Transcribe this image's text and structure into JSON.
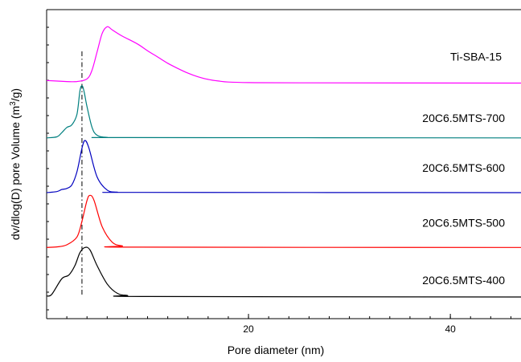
{
  "chart_data": {
    "type": "line",
    "xlabel": "Pore diameter (nm)",
    "ylabel_prefix": "dv/dlog(D) pore Volume (m",
    "ylabel_sup": "3",
    "ylabel_suffix": "/g)",
    "xlim": [
      0,
      47
    ],
    "x_ticks": [
      20,
      40
    ],
    "x_minor_step": 2,
    "reference_line_x": 3.5,
    "legend": "none",
    "grid": false,
    "series": [
      {
        "name": "Ti-SBA-15",
        "color": "#ff00ff",
        "offset": 4.1,
        "points": [
          [
            0,
            0.05
          ],
          [
            2,
            0.03
          ],
          [
            3,
            0.03
          ],
          [
            4,
            0.08
          ],
          [
            4.5,
            0.25
          ],
          [
            5,
            0.6
          ],
          [
            5.5,
            0.95
          ],
          [
            6,
            1.08
          ],
          [
            6.5,
            1.02
          ],
          [
            7.5,
            0.9
          ],
          [
            9,
            0.75
          ],
          [
            10,
            0.62
          ],
          [
            11,
            0.5
          ],
          [
            12,
            0.38
          ],
          [
            13,
            0.28
          ],
          [
            14,
            0.19
          ],
          [
            15,
            0.12
          ],
          [
            16,
            0.07
          ],
          [
            17,
            0.04
          ],
          [
            18,
            0.02
          ],
          [
            20,
            0.01
          ],
          [
            25,
            0.005
          ],
          [
            47,
            0
          ]
        ]
      },
      {
        "name": "20C6.5MTS-700",
        "color": "#007f7f",
        "offset": 3.05,
        "points": [
          [
            0,
            0
          ],
          [
            1,
            0.02
          ],
          [
            1.5,
            0.1
          ],
          [
            2,
            0.2
          ],
          [
            2.5,
            0.25
          ],
          [
            3,
            0.45
          ],
          [
            3.3,
            0.9
          ],
          [
            3.5,
            1.0
          ],
          [
            3.7,
            0.9
          ],
          [
            4,
            0.6
          ],
          [
            4.5,
            0.2
          ],
          [
            5,
            0.05
          ],
          [
            6,
            0.01
          ],
          [
            8,
            0.005
          ],
          [
            47,
            0
          ]
        ]
      },
      {
        "name": "20C6.5MTS-600",
        "color": "#0000bf",
        "offset": 2.0,
        "points": [
          [
            0,
            0
          ],
          [
            1,
            0.02
          ],
          [
            1.5,
            0.06
          ],
          [
            2,
            0.08
          ],
          [
            2.5,
            0.15
          ],
          [
            3,
            0.4
          ],
          [
            3.5,
            0.85
          ],
          [
            3.8,
            1.0
          ],
          [
            4.2,
            0.85
          ],
          [
            5,
            0.3
          ],
          [
            6,
            0.05
          ],
          [
            7,
            0.01
          ],
          [
            9,
            0.005
          ],
          [
            47,
            0
          ]
        ]
      },
      {
        "name": "20C6.5MTS-500",
        "color": "#ff0000",
        "offset": 0.95,
        "points": [
          [
            0,
            0
          ],
          [
            1,
            0.01
          ],
          [
            2,
            0.05
          ],
          [
            3,
            0.2
          ],
          [
            3.5,
            0.5
          ],
          [
            4,
            0.9
          ],
          [
            4.3,
            1.0
          ],
          [
            4.7,
            0.9
          ],
          [
            5.5,
            0.4
          ],
          [
            6.5,
            0.1
          ],
          [
            7.5,
            0.03
          ],
          [
            9,
            0.005
          ],
          [
            47,
            0
          ]
        ]
      },
      {
        "name": "20C6.5MTS-400",
        "color": "#000000",
        "offset": 0.0,
        "points": [
          [
            0,
            0.02
          ],
          [
            0.5,
            0.05
          ],
          [
            1.5,
            0.35
          ],
          [
            2.2,
            0.42
          ],
          [
            2.8,
            0.6
          ],
          [
            3.3,
            0.85
          ],
          [
            3.8,
            0.95
          ],
          [
            4.3,
            0.9
          ],
          [
            5,
            0.6
          ],
          [
            6,
            0.25
          ],
          [
            7,
            0.07
          ],
          [
            8,
            0.03
          ],
          [
            10,
            0.01
          ],
          [
            47,
            0
          ]
        ]
      }
    ]
  }
}
